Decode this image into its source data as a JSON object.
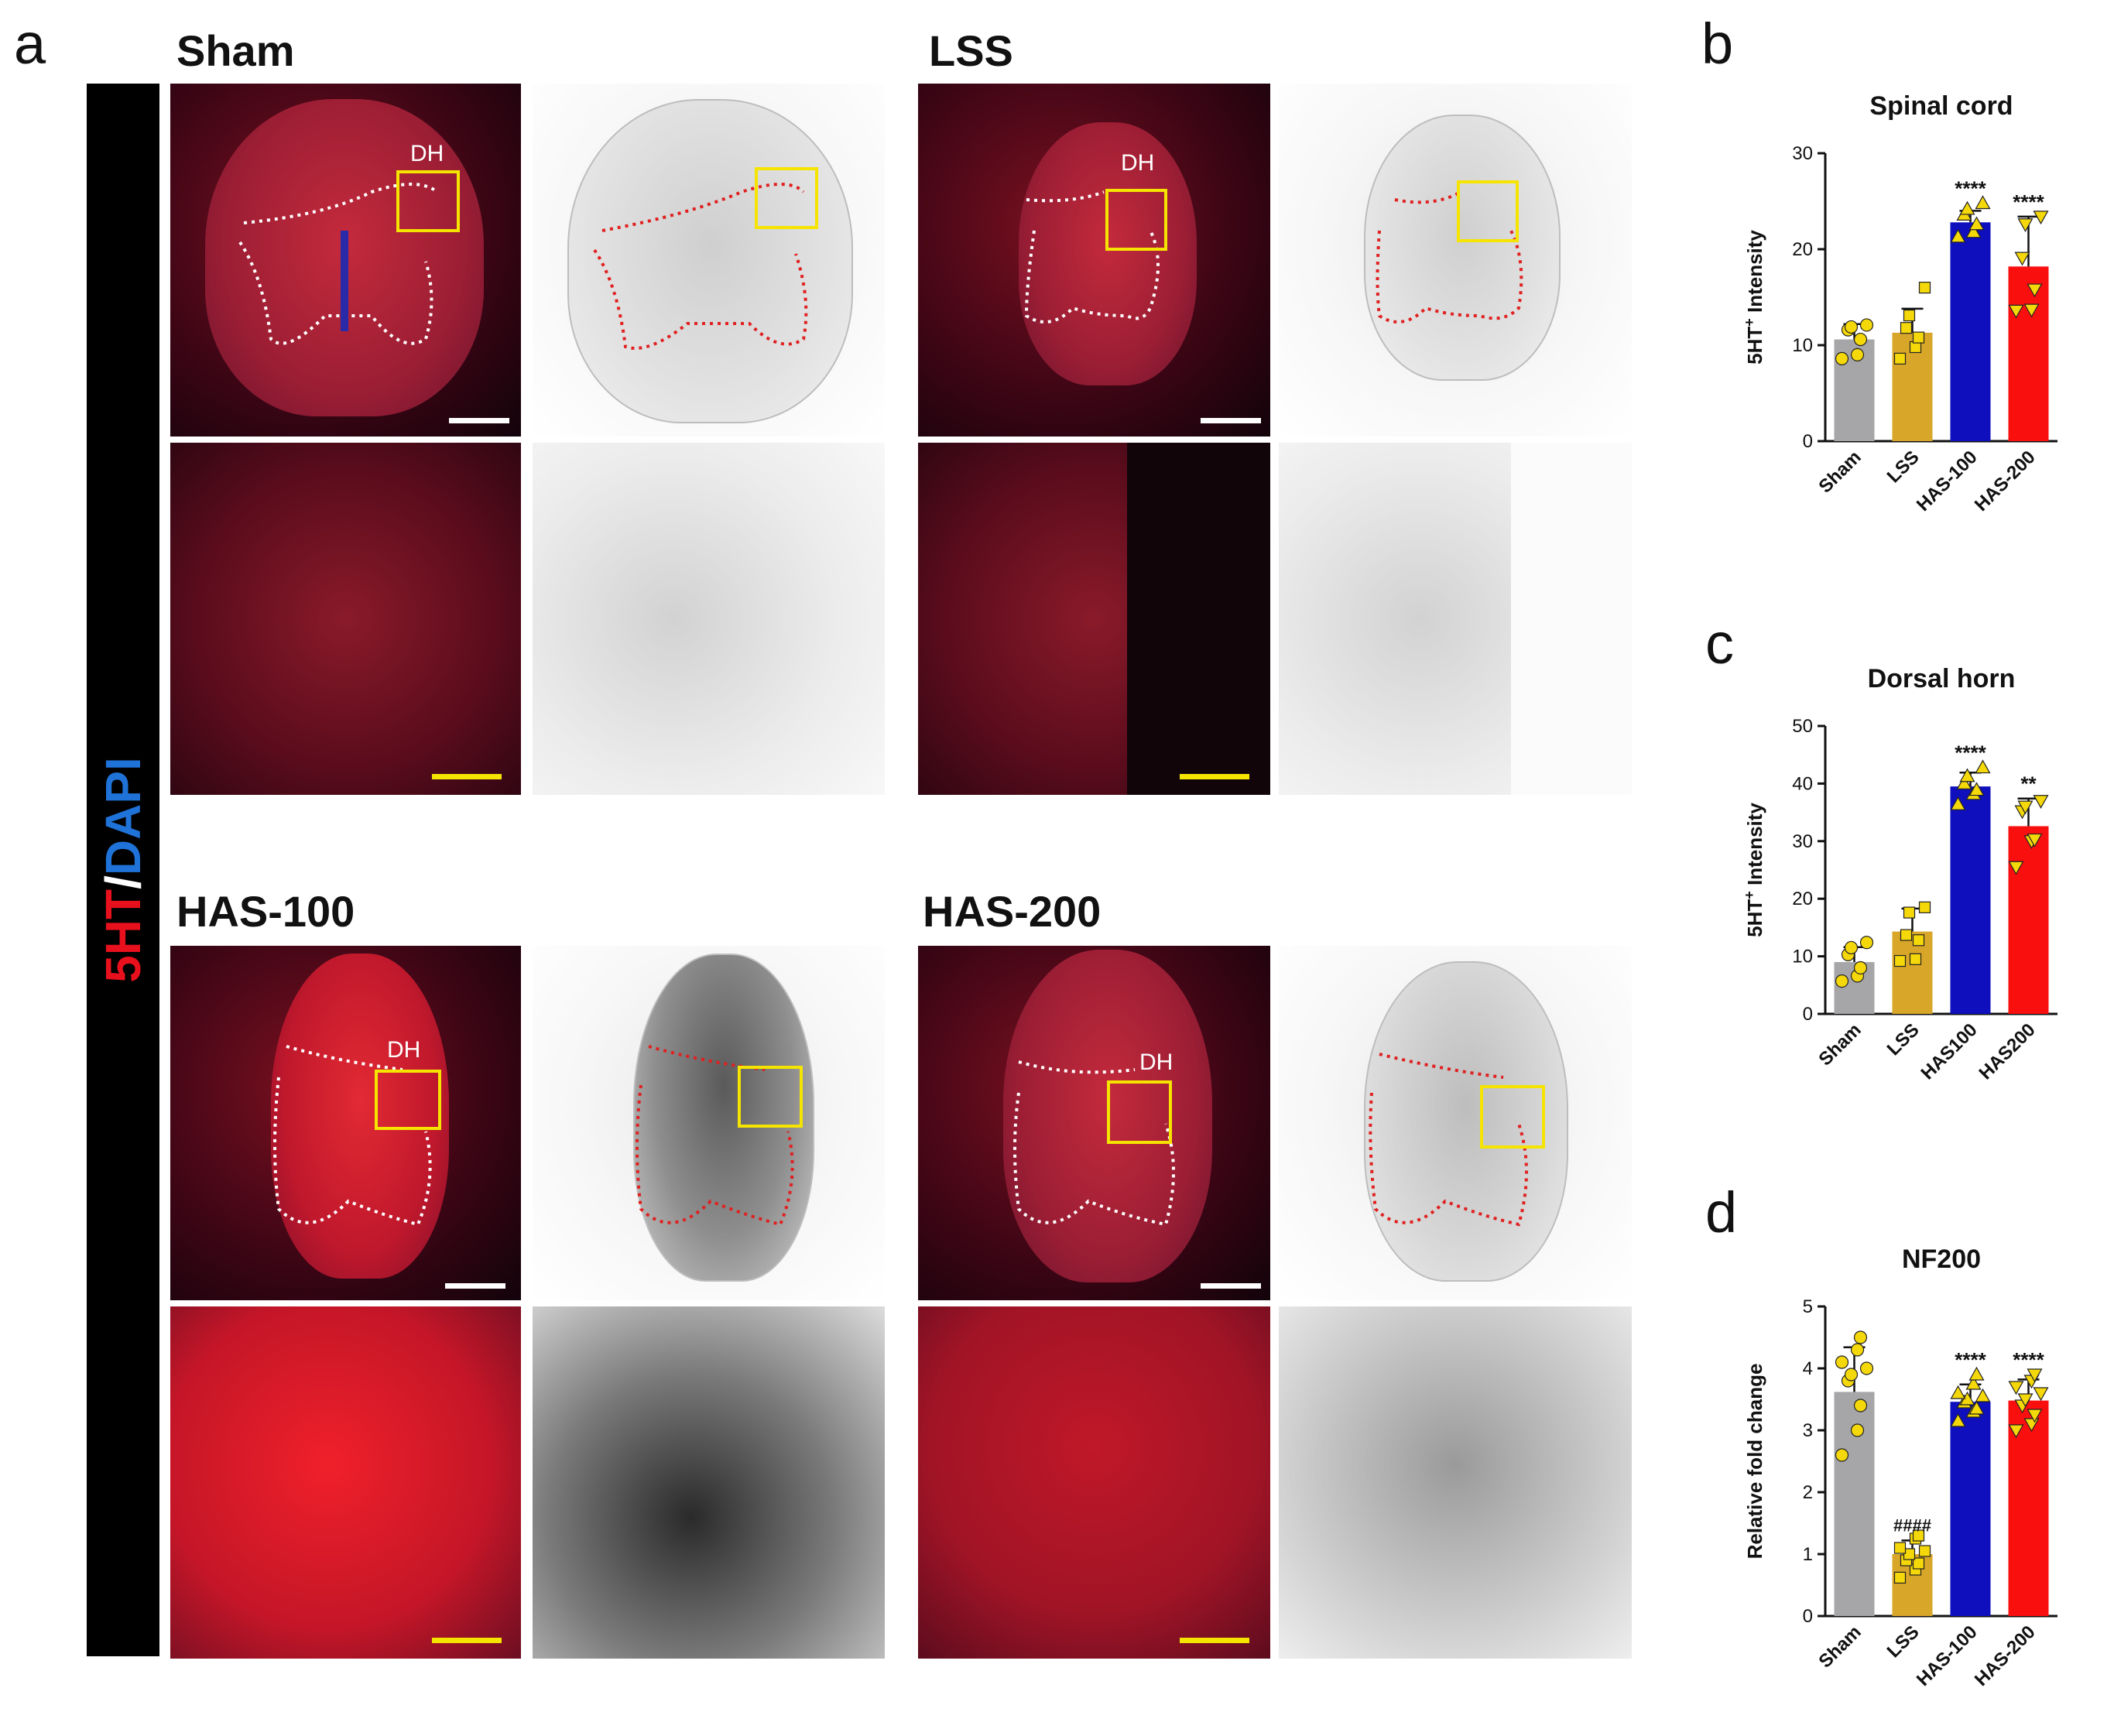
{
  "panel_labels": {
    "a": "a",
    "b": "b",
    "c": "c",
    "d": "d"
  },
  "stain": {
    "red": "5HT",
    "slash": "/",
    "blue": "DAPI"
  },
  "groups": {
    "sham": {
      "title": "Sham",
      "dh": "DH"
    },
    "lss": {
      "title": "LSS",
      "dh": "DH"
    },
    "has100": {
      "title": "HAS-100",
      "dh": "DH"
    },
    "has200": {
      "title": "HAS-200",
      "dh": "DH"
    }
  },
  "colors": {
    "sham": "#a6a6a8",
    "lss": "#d8a628",
    "has100": "#0f0fbe",
    "has200": "#fa0f0f",
    "points": "#f5d80a",
    "scale_white": "#ffffff",
    "scale_yellow": "#f5e400"
  },
  "chart_data": [
    {
      "id": "b",
      "type": "bar",
      "title": "Spinal cord",
      "ylabel_main": "5HT",
      "ylabel_sup": "+",
      "ylabel_rest": " Intensity",
      "categories": [
        "Sham",
        "LSS",
        "HAS-100",
        "HAS-200"
      ],
      "values": [
        10.6,
        11.3,
        22.8,
        18.2
      ],
      "errors": [
        1.6,
        2.5,
        1.2,
        5.2
      ],
      "points": [
        [
          8.6,
          9.0,
          10.6,
          11.6,
          11.9,
          12.1
        ],
        [
          8.6,
          9.8,
          10.8,
          11.8,
          13.1,
          16.0
        ],
        [
          21.3,
          21.8,
          22.6,
          23.6,
          24.2,
          24.8
        ],
        [
          13.6,
          13.7,
          15.8,
          19.1,
          22.6,
          23.4
        ]
      ],
      "markers": [
        "circle",
        "square",
        "triangle-up",
        "triangle-down"
      ],
      "annotations": [
        "",
        "",
        "****",
        "****"
      ],
      "ylim": [
        0,
        30
      ],
      "yticks": [
        "0",
        "10",
        "20",
        "30"
      ]
    },
    {
      "id": "c",
      "type": "bar",
      "title": "Dorsal horn",
      "ylabel_main": "5HT",
      "ylabel_sup": "+",
      "ylabel_rest": " Intensity",
      "categories": [
        "Sham",
        "LSS",
        "HAS100",
        "HAS200"
      ],
      "values": [
        9.0,
        14.3,
        39.5,
        32.6
      ],
      "errors": [
        2.6,
        4.0,
        2.4,
        4.8
      ],
      "points": [
        [
          5.7,
          6.6,
          8.0,
          10.3,
          11.5,
          12.4
        ],
        [
          9.2,
          9.5,
          12.8,
          13.7,
          17.6,
          18.5
        ],
        [
          36.4,
          38.2,
          38.9,
          40.0,
          41.3,
          42.8
        ],
        [
          25.5,
          30.0,
          30.3,
          35.2,
          36.0,
          37.0
        ]
      ],
      "markers": [
        "circle",
        "square",
        "triangle-up",
        "triangle-down"
      ],
      "annotations": [
        "",
        "",
        "****",
        "**"
      ],
      "ylim": [
        0,
        50
      ],
      "yticks": [
        "0",
        "10",
        "20",
        "30",
        "40",
        "50"
      ]
    },
    {
      "id": "d",
      "type": "bar",
      "title": "NF200",
      "ylabel": "Relative fold change",
      "categories": [
        "Sham",
        "LSS",
        "HAS-100",
        "HAS-200"
      ],
      "values": [
        3.62,
        1.0,
        3.46,
        3.48
      ],
      "errors": [
        0.72,
        0.22,
        0.28,
        0.34
      ],
      "points": [
        [
          2.6,
          3.0,
          3.4,
          3.8,
          3.9,
          4.0,
          4.1,
          4.3,
          4.5
        ],
        [
          0.62,
          0.75,
          0.85,
          0.9,
          1.0,
          1.05,
          1.1,
          1.25,
          1.3
        ],
        [
          3.15,
          3.3,
          3.35,
          3.45,
          3.5,
          3.55,
          3.6,
          3.75,
          3.9
        ],
        [
          3.0,
          3.1,
          3.25,
          3.4,
          3.5,
          3.6,
          3.7,
          3.8,
          3.9
        ]
      ],
      "markers": [
        "circle",
        "square",
        "triangle-up",
        "triangle-down"
      ],
      "annotations": [
        "",
        "####",
        "****",
        "****"
      ],
      "ylim": [
        0,
        5
      ],
      "yticks": [
        "0",
        "1",
        "2",
        "3",
        "4",
        "5"
      ]
    }
  ]
}
